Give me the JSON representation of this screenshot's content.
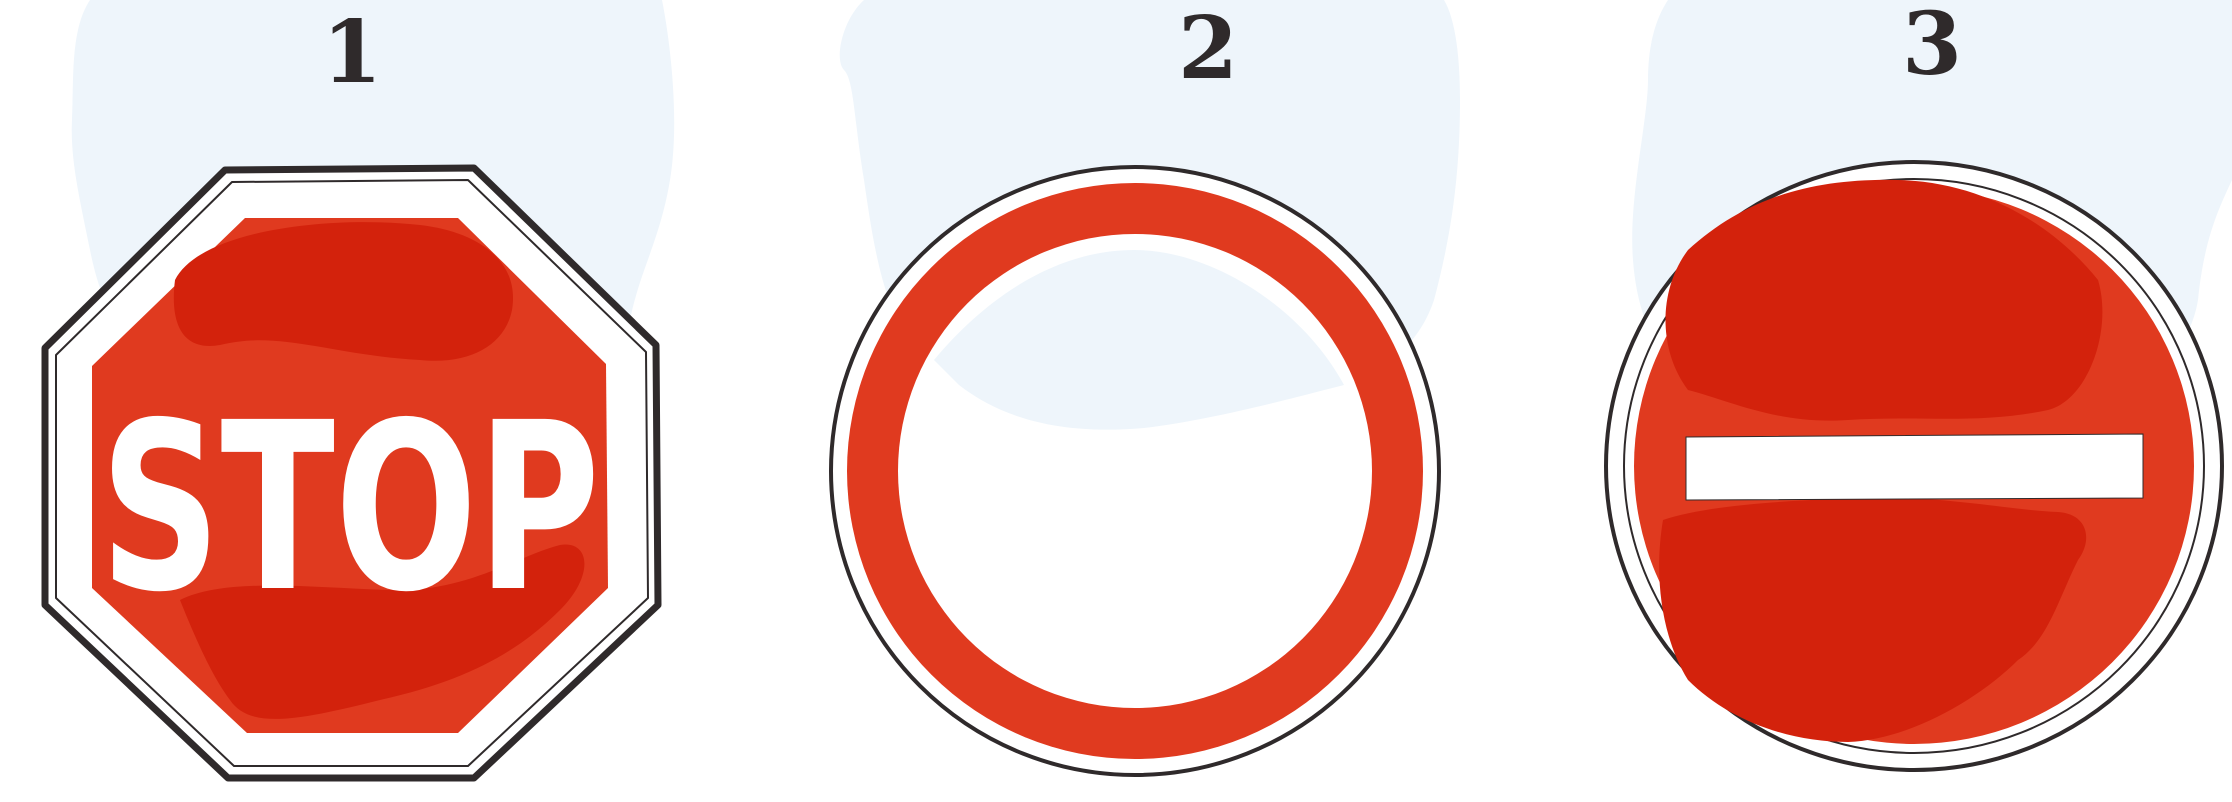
{
  "panels": [
    {
      "number": "1",
      "sign": {
        "shape": "octagon",
        "text": "STOP",
        "colors": {
          "face": "#e03a1f",
          "shadow": "#d3220c",
          "border": "#ffffff",
          "outline": "#2f2a2b"
        }
      },
      "background": "#eef5fb"
    },
    {
      "number": "2",
      "sign": {
        "shape": "circle-ring",
        "text": "",
        "colors": {
          "ring": "#e03a1f",
          "center": "#ffffff",
          "outline": "#2f2a2b"
        }
      },
      "background": "#eef5fb"
    },
    {
      "number": "3",
      "sign": {
        "shape": "circle-bar",
        "text": "",
        "colors": {
          "face": "#e03a1f",
          "shadow": "#d3220c",
          "bar": "#ffffff",
          "outline": "#2f2a2b"
        }
      },
      "background": "#eef5fb"
    }
  ]
}
